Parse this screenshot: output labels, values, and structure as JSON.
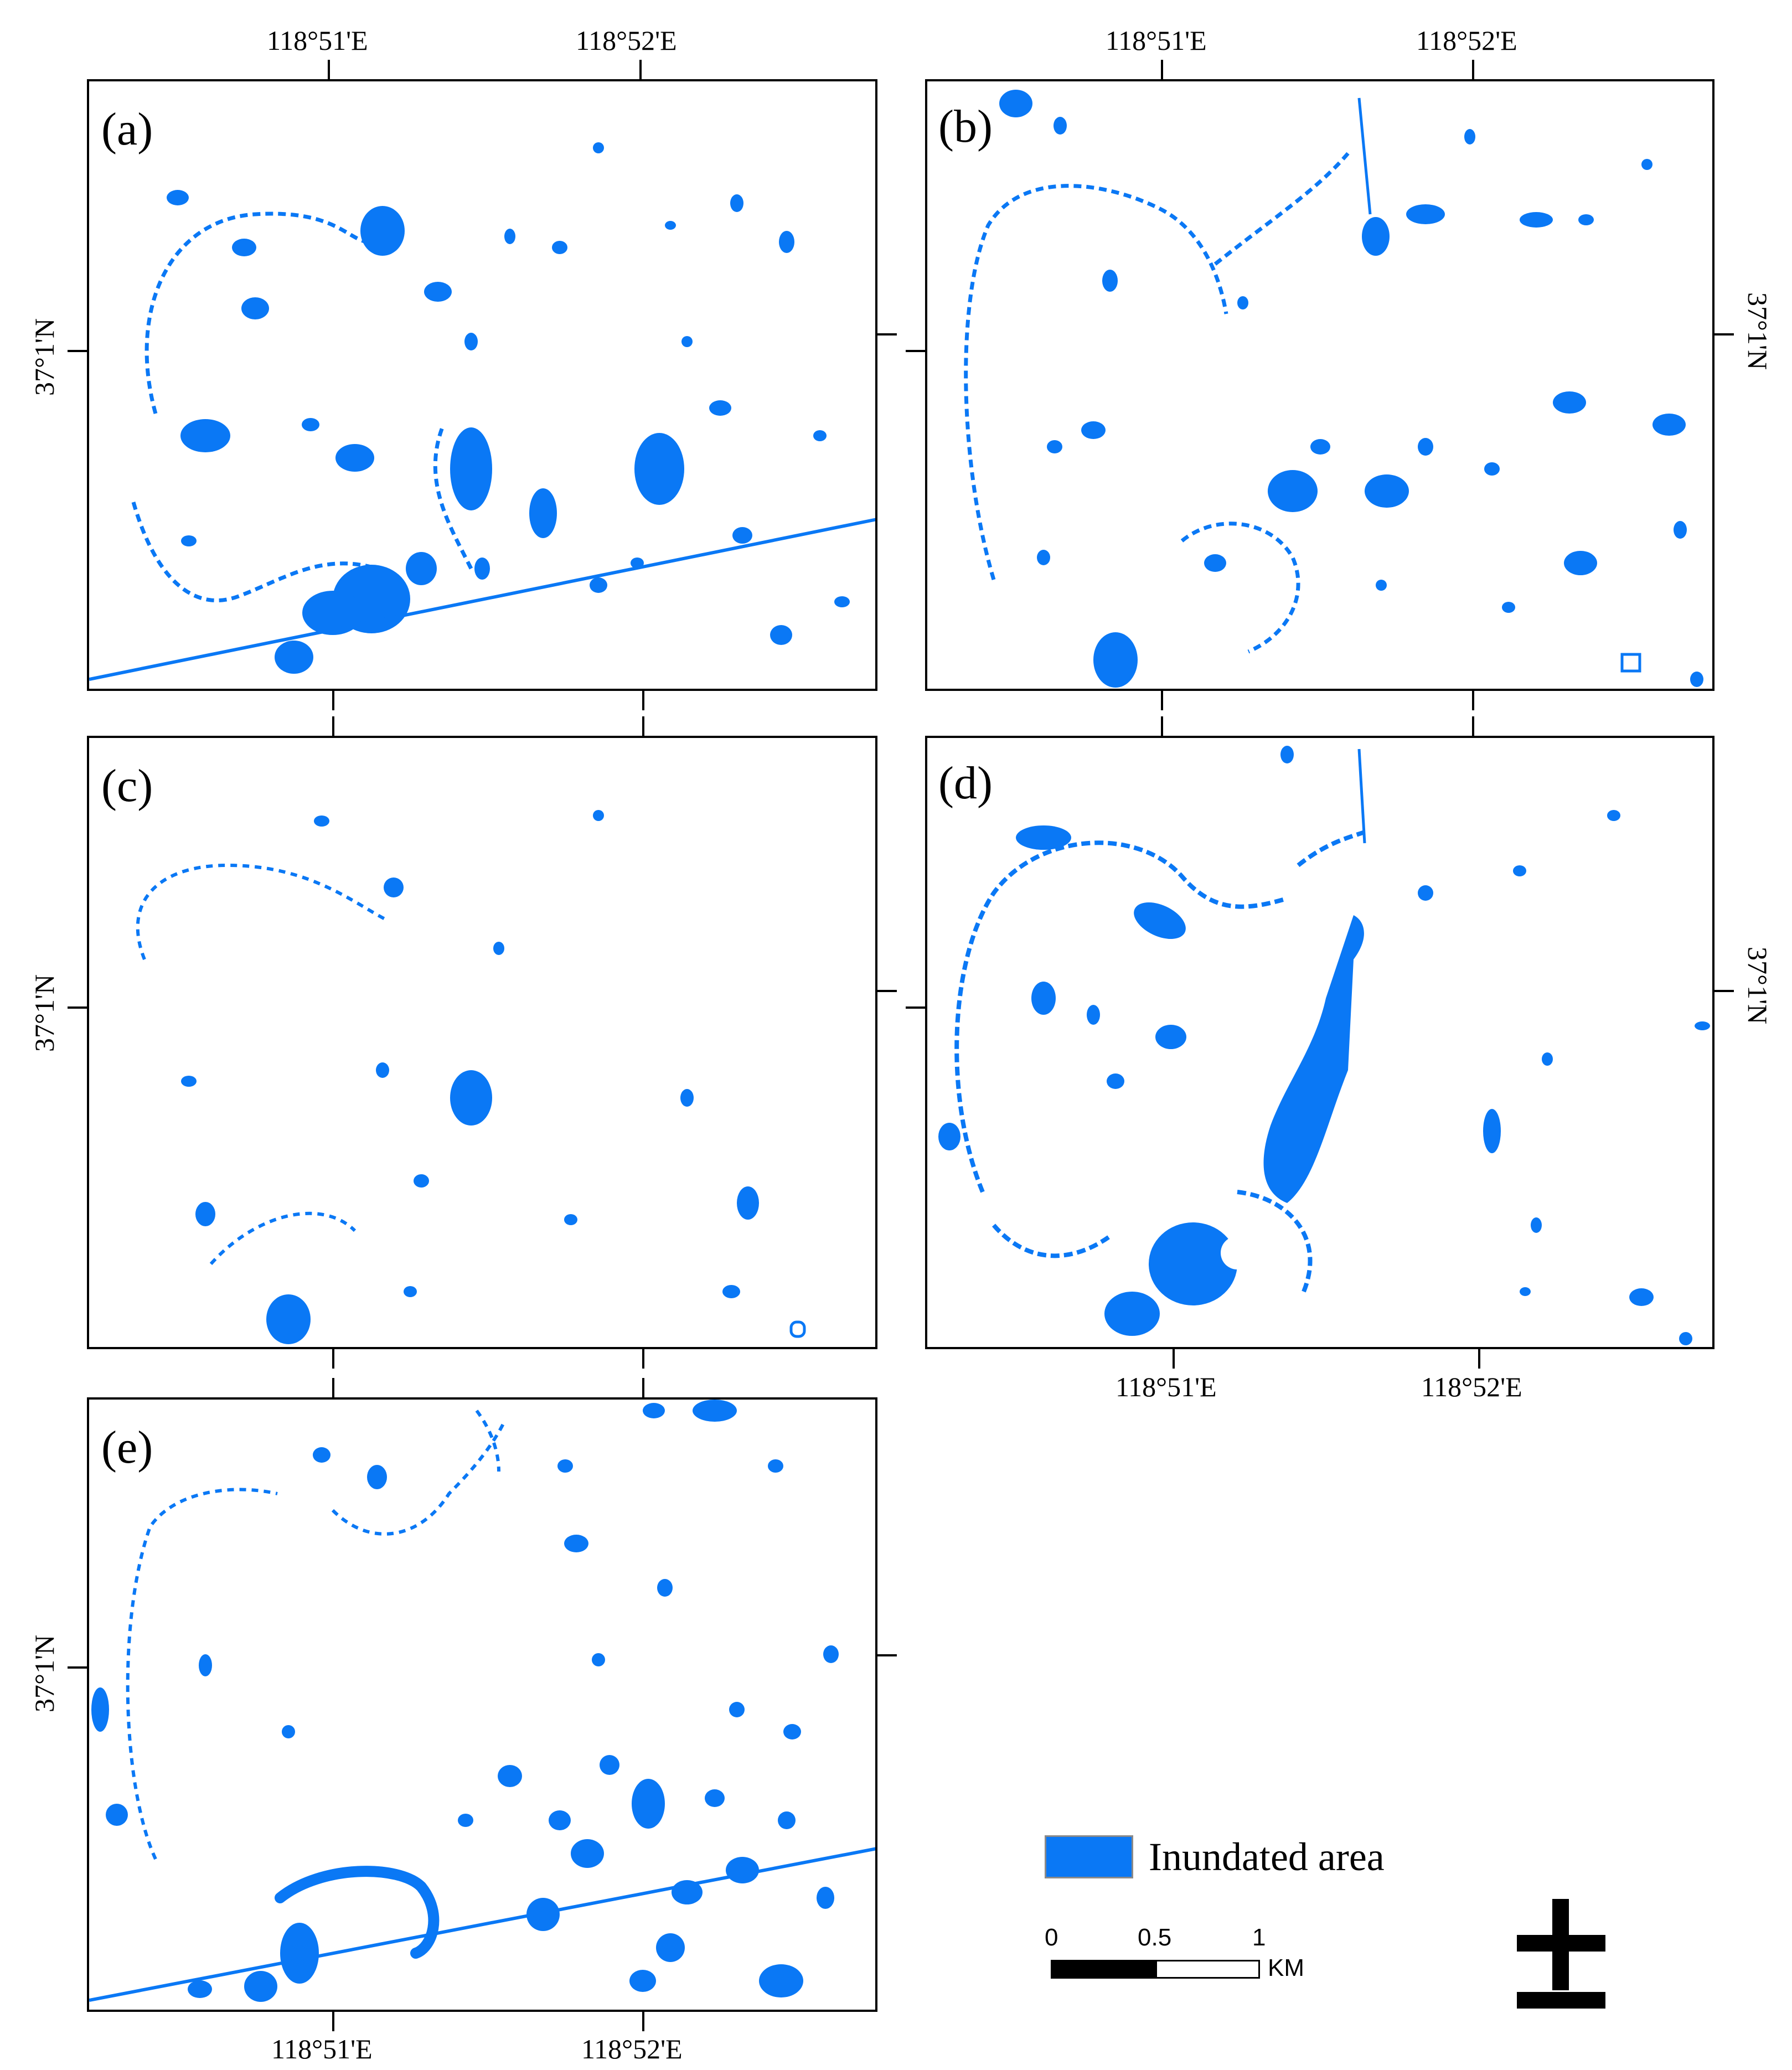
{
  "colors": {
    "inundated": "#0a78f5",
    "frame": "#000000",
    "background": "#ffffff"
  },
  "coords": {
    "lon1": "118°51'E",
    "lon2": "118°52'E",
    "lat": "37°1'N"
  },
  "panels": {
    "a": {
      "label": "(a)"
    },
    "b": {
      "label": "(b)"
    },
    "c": {
      "label": "(c)"
    },
    "d": {
      "label": "(d)"
    },
    "e": {
      "label": "(e)"
    }
  },
  "legend": {
    "label": "Inundated area"
  },
  "scale_bar": {
    "ticks": [
      "0",
      "0.5",
      "1"
    ],
    "unit": "KM"
  },
  "north_arrow": {
    "icon": "north-arrow-icon"
  }
}
